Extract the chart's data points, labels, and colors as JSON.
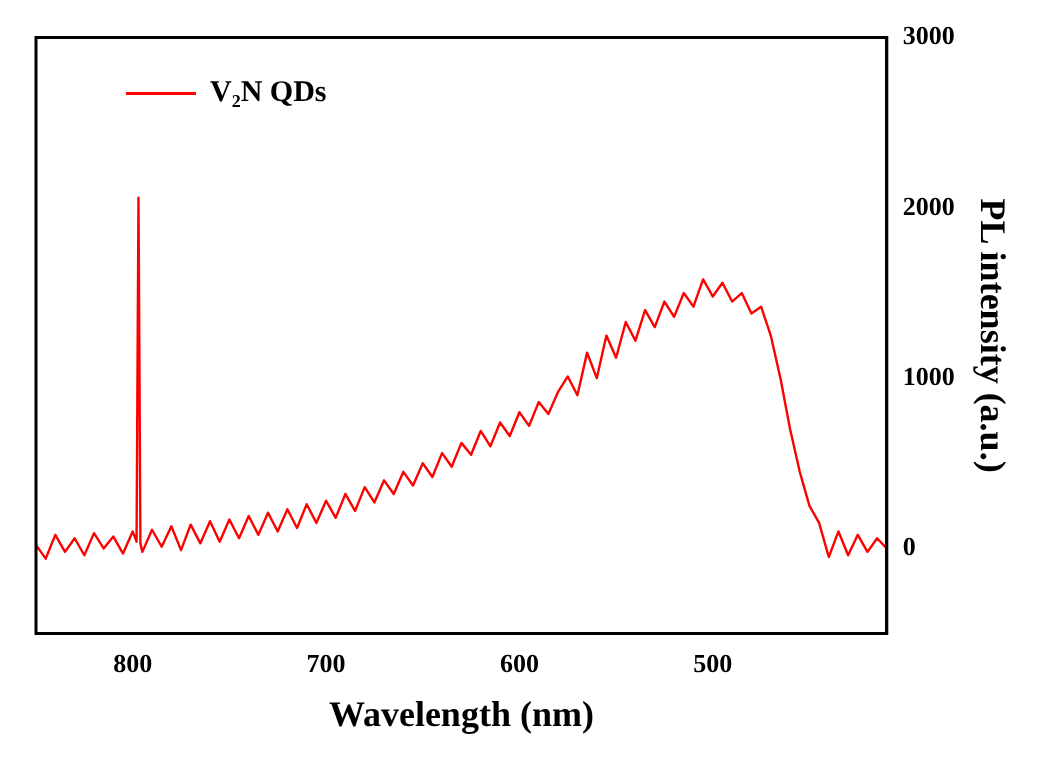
{
  "chart_data": {
    "type": "line",
    "xlabel": "Wavelength (nm)",
    "ylabel": "PL intensity (a.u.)",
    "x": [
      850,
      845,
      840,
      835,
      830,
      825,
      820,
      815,
      810,
      805,
      800,
      798,
      797,
      796,
      795,
      790,
      785,
      780,
      775,
      770,
      765,
      760,
      755,
      750,
      745,
      740,
      735,
      730,
      725,
      720,
      715,
      710,
      705,
      700,
      695,
      690,
      685,
      680,
      675,
      670,
      665,
      660,
      655,
      650,
      645,
      640,
      635,
      630,
      625,
      620,
      615,
      610,
      605,
      600,
      595,
      590,
      585,
      580,
      575,
      570,
      565,
      560,
      555,
      550,
      545,
      540,
      535,
      530,
      525,
      520,
      515,
      510,
      505,
      500,
      495,
      490,
      485,
      480,
      475,
      470,
      465,
      460,
      455,
      450,
      445,
      440,
      435,
      430,
      425,
      420,
      415,
      410
    ],
    "series": [
      {
        "name": "V₂N QDs",
        "color": "#ff0000",
        "values": [
          20,
          -60,
          80,
          -20,
          60,
          -40,
          90,
          0,
          70,
          -30,
          100,
          40,
          2060,
          30,
          -20,
          110,
          10,
          130,
          -10,
          140,
          30,
          160,
          40,
          170,
          60,
          190,
          80,
          210,
          100,
          230,
          120,
          260,
          150,
          280,
          180,
          320,
          220,
          360,
          270,
          400,
          320,
          450,
          370,
          500,
          420,
          560,
          480,
          620,
          550,
          690,
          600,
          740,
          660,
          800,
          720,
          860,
          790,
          920,
          1010,
          900,
          1150,
          1000,
          1250,
          1120,
          1330,
          1220,
          1400,
          1300,
          1450,
          1360,
          1500,
          1420,
          1580,
          1480,
          1560,
          1450,
          1500,
          1380,
          1420,
          1250,
          1000,
          700,
          450,
          250,
          150,
          -50,
          100,
          -40,
          80,
          -20,
          60,
          0
        ]
      }
    ],
    "xlim": [
      850,
      410
    ],
    "xticks": [
      800,
      700,
      600,
      500
    ],
    "ylim": [
      -500,
      3000
    ],
    "yticks": [
      0,
      1000,
      2000,
      3000
    ],
    "grid": false,
    "legend": "top left",
    "marker": "none",
    "line_style": "solid"
  }
}
